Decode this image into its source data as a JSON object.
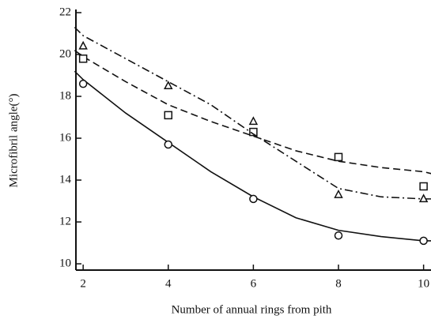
{
  "chart_data": {
    "type": "scatter",
    "x_label": "Number of annual rings from pith",
    "y_label": "Microfibril angle(°)",
    "x": [
      2,
      4,
      6,
      8,
      10
    ],
    "xlim": [
      1.83,
      10.1
    ],
    "xticks": [
      2,
      4,
      6,
      8,
      10
    ],
    "ylim": [
      9.7,
      22
    ],
    "yticks": [
      10,
      12,
      14,
      16,
      18,
      20,
      22
    ],
    "fit_x": [
      1.8,
      2,
      3,
      4,
      5,
      6,
      7,
      8,
      9,
      10,
      10.2
    ],
    "series": [
      {
        "marker": "circle",
        "color": "#111111",
        "line": "solid",
        "values": [
          18.6,
          15.7,
          13.1,
          11.35,
          11.1
        ],
        "fit": [
          19.2,
          18.8,
          17.2,
          15.8,
          14.4,
          13.2,
          12.2,
          11.6,
          11.3,
          11.1,
          11.1
        ]
      },
      {
        "marker": "square",
        "color": "#111111",
        "line": "dashed",
        "values": [
          19.8,
          17.1,
          16.3,
          15.1,
          13.7
        ],
        "fit": [
          20.2,
          19.9,
          18.7,
          17.6,
          16.8,
          16.1,
          15.4,
          14.9,
          14.6,
          14.4,
          14.3
        ]
      },
      {
        "marker": "triangle",
        "color": "#111111",
        "line": "dashdot",
        "values": [
          20.4,
          18.5,
          16.8,
          13.3,
          13.1
        ],
        "fit": [
          21.3,
          20.9,
          19.8,
          18.7,
          17.6,
          16.2,
          14.9,
          13.6,
          13.2,
          13.1,
          13.1
        ]
      }
    ]
  }
}
